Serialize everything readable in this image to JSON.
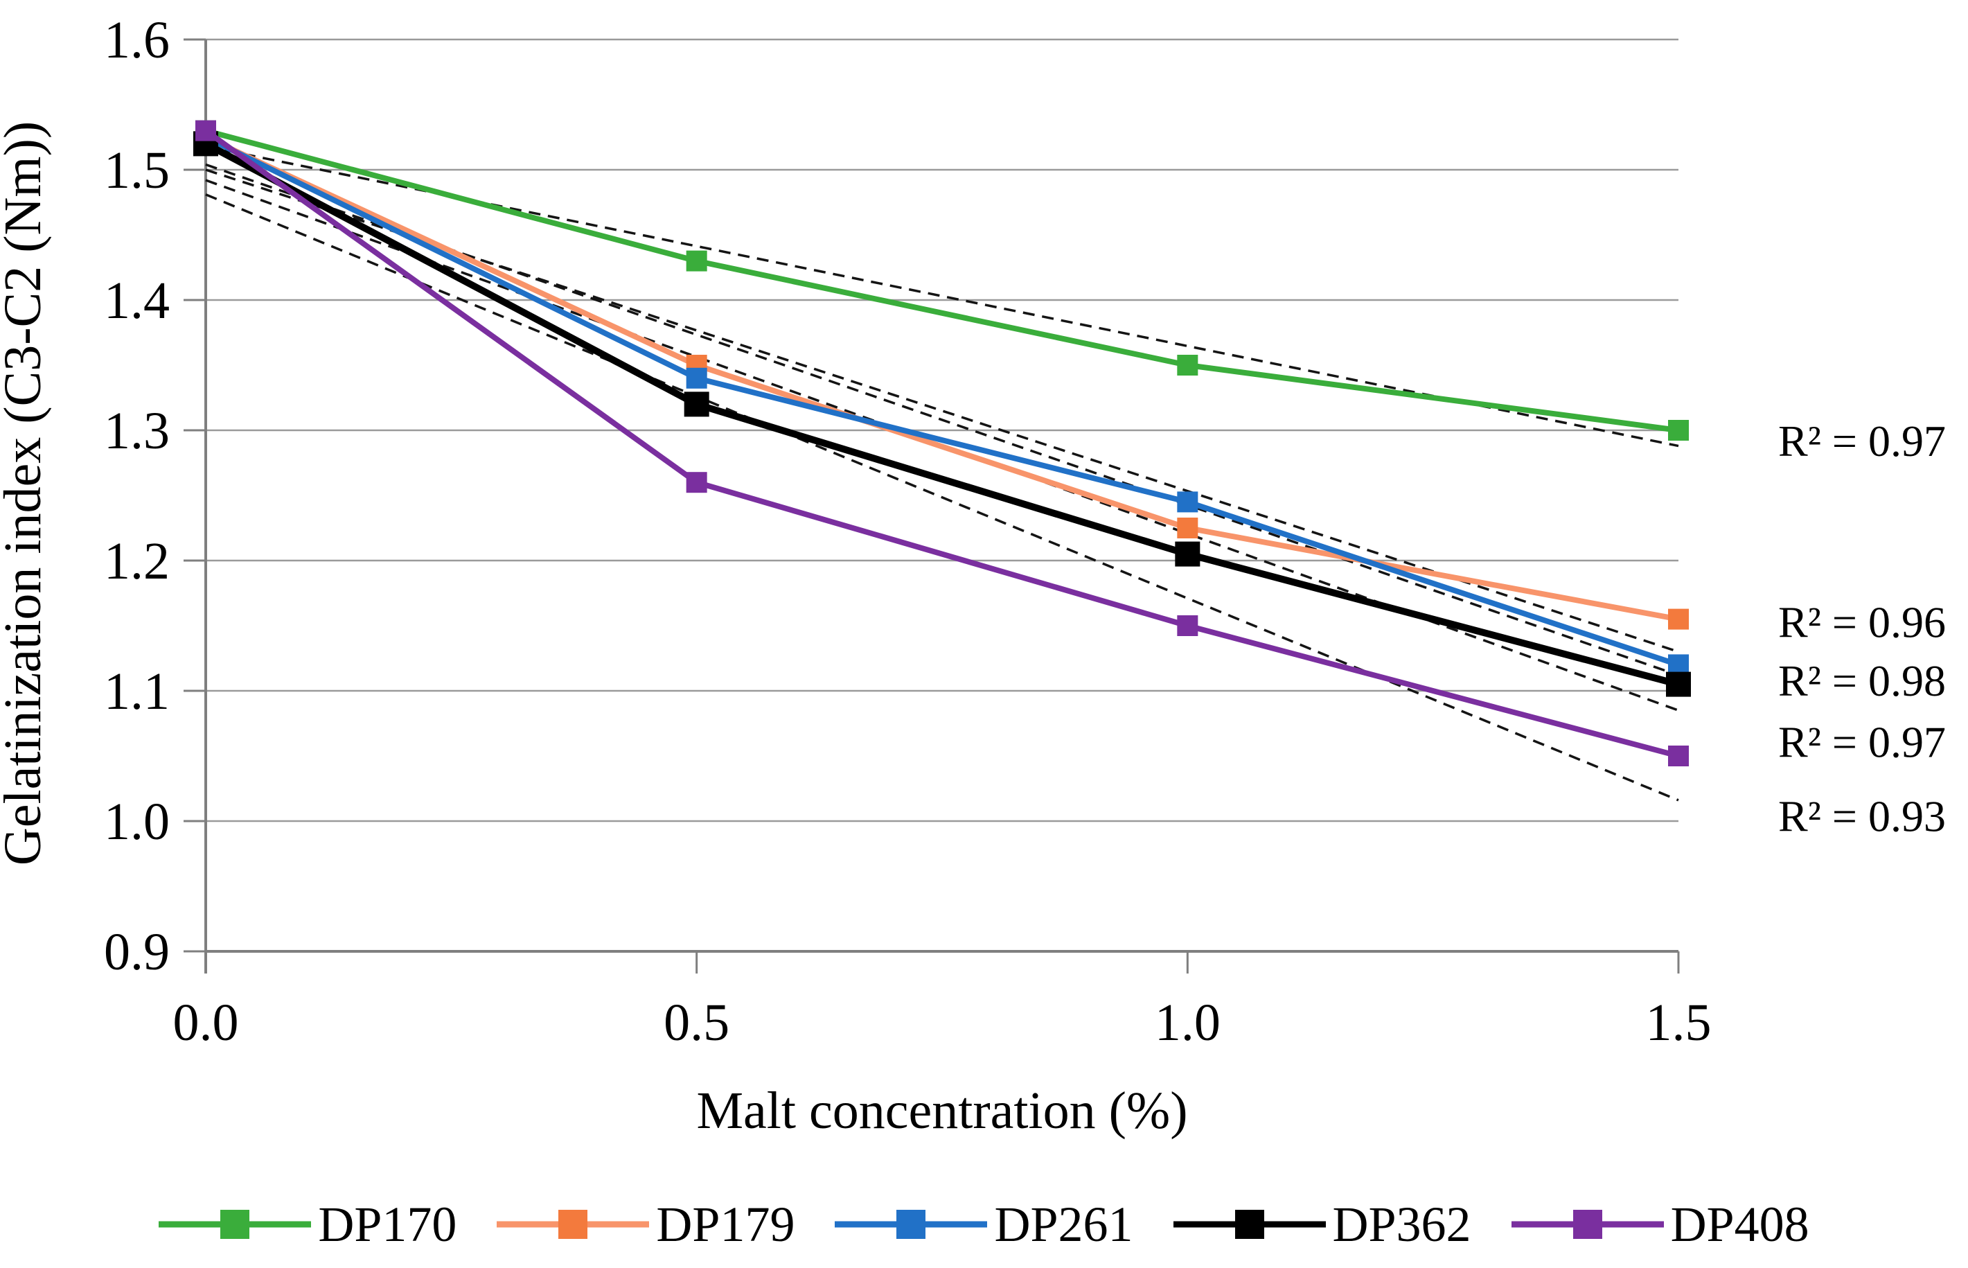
{
  "figure": {
    "background": "#ffffff",
    "grid_color": "#9a9a9a",
    "axis_color": "#7f7f7f",
    "trendline_color": "#141414"
  },
  "chart_data": {
    "type": "line",
    "title": "",
    "xlabel": "Malt concentration (%)",
    "ylabel": "Gelatinization index (C3-C2 (Nm))",
    "xlim": [
      0.0,
      1.5
    ],
    "ylim": [
      0.9,
      1.6
    ],
    "grid": true,
    "legend_position": "bottom",
    "x": [
      0.0,
      0.5,
      1.0,
      1.5
    ],
    "x_tick_labels": [
      "0.0",
      "0.5",
      "1.0",
      "1.5"
    ],
    "y_ticks": [
      1.6,
      1.5,
      1.4,
      1.3,
      1.2,
      1.1,
      1.0,
      0.9
    ],
    "y_tick_labels": [
      "1.6",
      "1.5",
      "1.4",
      "1.3",
      "1.2",
      "1.1",
      "1.0",
      "0.9"
    ],
    "series": [
      {
        "name": "DP170",
        "color": "#3aad3b",
        "marker_color": "#3aad3b",
        "values": [
          1.53,
          1.43,
          1.35,
          1.3
        ],
        "r2_label": "R² = 0.97",
        "r2_label_y": 1.292
      },
      {
        "name": "DP179",
        "color": "#f8946a",
        "marker_color": "#f37a3d",
        "values": [
          1.525,
          1.35,
          1.225,
          1.155
        ],
        "r2_label": "R² = 0.96",
        "r2_label_y": 1.153
      },
      {
        "name": "DP261",
        "color": "#2171c7",
        "marker_color": "#2171c7",
        "values": [
          1.525,
          1.34,
          1.245,
          1.12
        ],
        "r2_label": "R² = 0.98",
        "r2_label_y": 1.108
      },
      {
        "name": "DP362",
        "color": "#000000",
        "marker_color": "#000000",
        "values": [
          1.52,
          1.32,
          1.205,
          1.105
        ],
        "r2_label": "R² = 0.97",
        "r2_label_y": 1.061
      },
      {
        "name": "DP408",
        "color": "#7a2f9f",
        "marker_color": "#7a2f9f",
        "values": [
          1.53,
          1.26,
          1.15,
          1.05
        ],
        "r2_label": "R² = 0.93",
        "r2_label_y": 1.004
      }
    ],
    "trendlines": [
      {
        "series": "DP170",
        "start": 1.518,
        "end": 1.288
      },
      {
        "series": "DP179",
        "start": 1.5,
        "end": 1.13
      },
      {
        "series": "DP261",
        "start": 1.504,
        "end": 1.112
      },
      {
        "series": "DP362",
        "start": 1.492,
        "end": 1.085
      },
      {
        "series": "DP408",
        "start": 1.481,
        "end": 1.016
      }
    ]
  }
}
